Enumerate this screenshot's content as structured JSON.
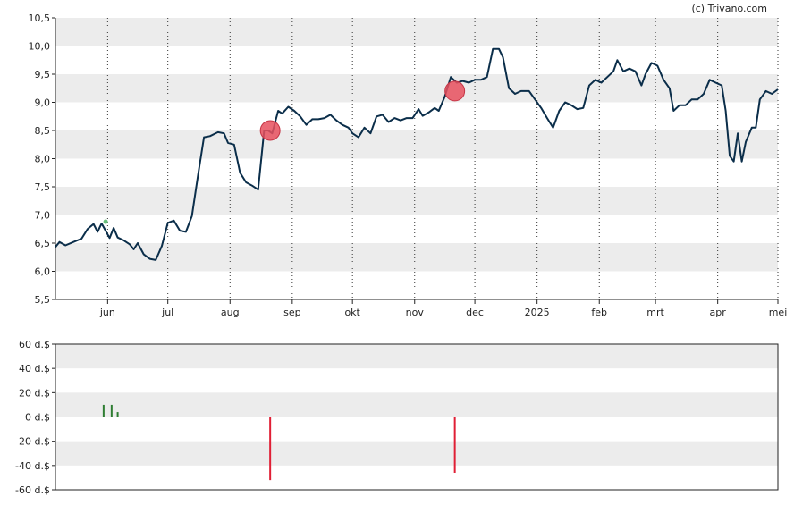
{
  "copyright": "(c) Trivano.com",
  "colors": {
    "price_line": "#0b2e4a",
    "band": "#ececec",
    "buy_volume": "#2e7d32",
    "sell_volume": "#e01f35",
    "sell_marker": "#e8505e",
    "buy_marker": "#6abf7b"
  },
  "chart_data": [
    {
      "type": "line",
      "title": "",
      "xlabel": "",
      "ylabel": "",
      "ylim": [
        5.5,
        10.5
      ],
      "y_ticks": [
        "10,5",
        "10,0",
        "9,5",
        "9,0",
        "8,5",
        "8,0",
        "7,5",
        "7,0",
        "6,5",
        "6,0",
        "5,5"
      ],
      "x_ticks": [
        "jun",
        "jul",
        "aug",
        "sep",
        "okt",
        "nov",
        "dec",
        "2025",
        "feb",
        "mrt",
        "apr",
        "mei"
      ],
      "grid": "vertical dotted lines at month starts; alternating horizontal bands",
      "x_range": [
        "2024-05-06",
        "2025-05-01"
      ],
      "series": [
        {
          "name": "",
          "points": [
            [
              "2024-05-06",
              6.43
            ],
            [
              "2024-05-08",
              6.52
            ],
            [
              "2024-05-11",
              6.46
            ],
            [
              "2024-05-15",
              6.52
            ],
            [
              "2024-05-19",
              6.58
            ],
            [
              "2024-05-22",
              6.75
            ],
            [
              "2024-05-25",
              6.84
            ],
            [
              "2024-05-27",
              6.7
            ],
            [
              "2024-05-29",
              6.85
            ],
            [
              "2024-05-31",
              6.72
            ],
            [
              "2024-06-02",
              6.59
            ],
            [
              "2024-06-04",
              6.77
            ],
            [
              "2024-06-06",
              6.6
            ],
            [
              "2024-06-09",
              6.55
            ],
            [
              "2024-06-12",
              6.48
            ],
            [
              "2024-06-14",
              6.39
            ],
            [
              "2024-06-16",
              6.5
            ],
            [
              "2024-06-19",
              6.3
            ],
            [
              "2024-06-22",
              6.22
            ],
            [
              "2024-06-25",
              6.2
            ],
            [
              "2024-06-28",
              6.45
            ],
            [
              "2024-07-01",
              6.86
            ],
            [
              "2024-07-04",
              6.9
            ],
            [
              "2024-07-07",
              6.72
            ],
            [
              "2024-07-10",
              6.7
            ],
            [
              "2024-07-13",
              6.98
            ],
            [
              "2024-07-16",
              7.7
            ],
            [
              "2024-07-19",
              8.38
            ],
            [
              "2024-07-22",
              8.4
            ],
            [
              "2024-07-26",
              8.47
            ],
            [
              "2024-07-29",
              8.45
            ],
            [
              "2024-07-31",
              8.28
            ],
            [
              "2024-08-03",
              8.25
            ],
            [
              "2024-08-06",
              7.75
            ],
            [
              "2024-08-09",
              7.58
            ],
            [
              "2024-08-12",
              7.52
            ],
            [
              "2024-08-15",
              7.45
            ],
            [
              "2024-08-18",
              8.5
            ],
            [
              "2024-08-20",
              8.5
            ],
            [
              "2024-08-22",
              8.45
            ],
            [
              "2024-08-25",
              8.85
            ],
            [
              "2024-08-27",
              8.8
            ],
            [
              "2024-08-30",
              8.92
            ],
            [
              "2024-09-02",
              8.85
            ],
            [
              "2024-09-05",
              8.75
            ],
            [
              "2024-09-08",
              8.6
            ],
            [
              "2024-09-11",
              8.7
            ],
            [
              "2024-09-14",
              8.7
            ],
            [
              "2024-09-17",
              8.72
            ],
            [
              "2024-09-20",
              8.78
            ],
            [
              "2024-09-23",
              8.68
            ],
            [
              "2024-09-26",
              8.6
            ],
            [
              "2024-09-29",
              8.55
            ],
            [
              "2024-10-01",
              8.45
            ],
            [
              "2024-10-04",
              8.38
            ],
            [
              "2024-10-07",
              8.55
            ],
            [
              "2024-10-10",
              8.45
            ],
            [
              "2024-10-13",
              8.75
            ],
            [
              "2024-10-16",
              8.78
            ],
            [
              "2024-10-19",
              8.65
            ],
            [
              "2024-10-22",
              8.72
            ],
            [
              "2024-10-25",
              8.68
            ],
            [
              "2024-10-28",
              8.72
            ],
            [
              "2024-10-31",
              8.72
            ],
            [
              "2024-11-03",
              8.88
            ],
            [
              "2024-11-05",
              8.76
            ],
            [
              "2024-11-08",
              8.82
            ],
            [
              "2024-11-11",
              8.9
            ],
            [
              "2024-11-13",
              8.85
            ],
            [
              "2024-11-16",
              9.1
            ],
            [
              "2024-11-19",
              9.45
            ],
            [
              "2024-11-22",
              9.35
            ],
            [
              "2024-11-25",
              9.38
            ],
            [
              "2024-11-28",
              9.35
            ],
            [
              "2024-12-01",
              9.4
            ],
            [
              "2024-12-04",
              9.4
            ],
            [
              "2024-12-07",
              9.45
            ],
            [
              "2024-12-10",
              9.95
            ],
            [
              "2024-12-13",
              9.95
            ],
            [
              "2024-12-15",
              9.8
            ],
            [
              "2024-12-18",
              9.25
            ],
            [
              "2024-12-21",
              9.15
            ],
            [
              "2024-12-24",
              9.2
            ],
            [
              "2024-12-28",
              9.2
            ],
            [
              "2024-12-31",
              9.05
            ],
            [
              "2025-01-03",
              8.9
            ],
            [
              "2025-01-06",
              8.72
            ],
            [
              "2025-01-09",
              8.55
            ],
            [
              "2025-01-12",
              8.85
            ],
            [
              "2025-01-15",
              9.0
            ],
            [
              "2025-01-18",
              8.95
            ],
            [
              "2025-01-21",
              8.88
            ],
            [
              "2025-01-24",
              8.9
            ],
            [
              "2025-01-27",
              9.3
            ],
            [
              "2025-01-30",
              9.4
            ],
            [
              "2025-02-02",
              9.35
            ],
            [
              "2025-02-05",
              9.45
            ],
            [
              "2025-02-08",
              9.55
            ],
            [
              "2025-02-10",
              9.75
            ],
            [
              "2025-02-13",
              9.55
            ],
            [
              "2025-02-16",
              9.6
            ],
            [
              "2025-02-19",
              9.55
            ],
            [
              "2025-02-22",
              9.3
            ],
            [
              "2025-02-24",
              9.5
            ],
            [
              "2025-02-27",
              9.7
            ],
            [
              "2025-03-02",
              9.65
            ],
            [
              "2025-03-05",
              9.4
            ],
            [
              "2025-03-08",
              9.25
            ],
            [
              "2025-03-10",
              8.85
            ],
            [
              "2025-03-13",
              8.95
            ],
            [
              "2025-03-16",
              8.95
            ],
            [
              "2025-03-19",
              9.05
            ],
            [
              "2025-03-22",
              9.05
            ],
            [
              "2025-03-25",
              9.15
            ],
            [
              "2025-03-28",
              9.4
            ],
            [
              "2025-03-31",
              9.35
            ],
            [
              "2025-04-03",
              9.3
            ],
            [
              "2025-04-05",
              8.85
            ],
            [
              "2025-04-07",
              8.05
            ],
            [
              "2025-04-09",
              7.95
            ],
            [
              "2025-04-11",
              8.45
            ],
            [
              "2025-04-13",
              7.95
            ],
            [
              "2025-04-15",
              8.3
            ],
            [
              "2025-04-18",
              8.55
            ],
            [
              "2025-04-20",
              8.55
            ],
            [
              "2025-04-22",
              9.05
            ],
            [
              "2025-04-25",
              9.2
            ],
            [
              "2025-04-28",
              9.15
            ],
            [
              "2025-05-01",
              9.23
            ]
          ]
        }
      ],
      "markers": [
        {
          "type": "sell",
          "x": "2024-08-21",
          "y": 8.5
        },
        {
          "type": "sell",
          "x": "2024-11-21",
          "y": 9.2
        },
        {
          "type": "buy",
          "x": "2024-05-31",
          "y": 6.88
        }
      ]
    },
    {
      "type": "bar",
      "title": "",
      "xlabel": "",
      "ylabel": "",
      "ylim": [
        -60,
        60
      ],
      "y_ticks": [
        "60 d.$",
        "40 d.$",
        "20 d.$",
        "0 d.$",
        "-20 d.$",
        "-40 d.$",
        "-60 d.$"
      ],
      "x_range": [
        "2024-05-06",
        "2025-05-01"
      ],
      "series": [
        {
          "name": "",
          "points": [
            [
              "2024-05-30",
              10
            ],
            [
              "2024-06-03",
              10
            ],
            [
              "2024-06-06",
              4
            ],
            [
              "2024-08-21",
              -52
            ],
            [
              "2024-11-21",
              -46
            ]
          ]
        }
      ]
    }
  ]
}
